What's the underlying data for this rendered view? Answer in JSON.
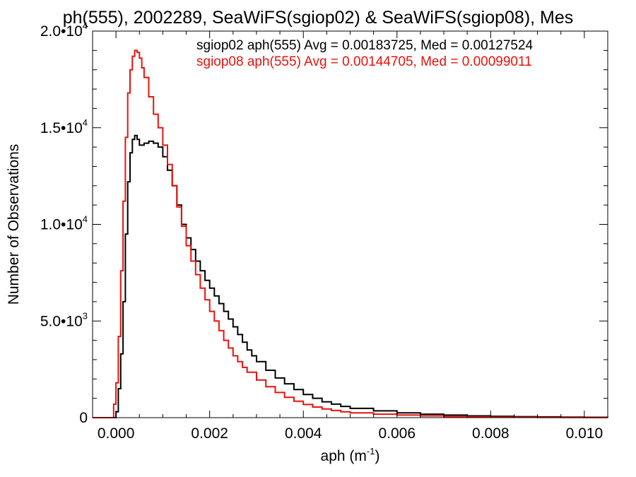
{
  "chart_data": {
    "type": "line",
    "drawstyle": "steps",
    "title": "ph(555), 2002289, SeaWiFS(sgiop02) & SeaWiFS(sgiop08), Mes",
    "xlabel_base": "aph (m",
    "xlabel_sup": "-1",
    "xlabel_close": ")",
    "ylabel": "Number of Observations",
    "xlim": [
      -0.0005,
      0.0105
    ],
    "ylim": [
      0,
      20000
    ],
    "xticks": [
      {
        "value": 0.0,
        "label": "0.000"
      },
      {
        "value": 0.002,
        "label": "0.002"
      },
      {
        "value": 0.004,
        "label": "0.004"
      },
      {
        "value": 0.006,
        "label": "0.006"
      },
      {
        "value": 0.008,
        "label": "0.008"
      },
      {
        "value": 0.01,
        "label": "0.010"
      }
    ],
    "yticks": [
      {
        "value": 0,
        "base": "0",
        "sup": ""
      },
      {
        "value": 5000,
        "base": "5.0•10",
        "sup": "3"
      },
      {
        "value": 10000,
        "base": "1.0•10",
        "sup": "4"
      },
      {
        "value": 15000,
        "base": "1.5•10",
        "sup": "4"
      },
      {
        "value": 20000,
        "base": "2.0•10",
        "sup": "4"
      }
    ],
    "grid": false,
    "annotations": [
      {
        "text": "sgiop02 aph(555) Avg = 0.00183725, Med = 0.00127524",
        "color": "#000000"
      },
      {
        "text": "sgiop08 aph(555) Avg = 0.00144705, Med = 0.00099011",
        "color": "#e8120c"
      }
    ],
    "series": [
      {
        "name": "sgiop02",
        "color": "#000000",
        "x": [
          -0.0005,
          -5e-05,
          0.0,
          5e-05,
          0.0001,
          0.00015,
          0.0002,
          0.00025,
          0.0003,
          0.00035,
          0.0004,
          0.00045,
          0.0005,
          0.0006,
          0.0007,
          0.0008,
          0.0009,
          0.001,
          0.0011,
          0.0012,
          0.0013,
          0.0014,
          0.0015,
          0.0016,
          0.0017,
          0.0018,
          0.0019,
          0.002,
          0.0021,
          0.0022,
          0.0023,
          0.0024,
          0.0025,
          0.0026,
          0.0027,
          0.0028,
          0.0029,
          0.003,
          0.0032,
          0.0034,
          0.0036,
          0.0038,
          0.004,
          0.0042,
          0.0044,
          0.0046,
          0.0048,
          0.005,
          0.0055,
          0.006,
          0.0065,
          0.007,
          0.0075,
          0.008,
          0.0085,
          0.009,
          0.0095,
          0.01,
          0.0105
        ],
        "y": [
          0,
          0,
          300,
          1500,
          3300,
          6000,
          9500,
          12200,
          13700,
          14400,
          14600,
          14400,
          14100,
          14200,
          14300,
          14200,
          14000,
          13500,
          12800,
          12000,
          11000,
          10000,
          9300,
          8700,
          8100,
          7600,
          7100,
          6700,
          6300,
          5900,
          5500,
          5100,
          4700,
          4300,
          3900,
          3500,
          3200,
          2900,
          2450,
          2050,
          1750,
          1450,
          1200,
          1000,
          820,
          700,
          580,
          480,
          350,
          250,
          180,
          130,
          90,
          70,
          50,
          40,
          30,
          20,
          15
        ]
      },
      {
        "name": "sgiop08",
        "color": "#e8120c",
        "x": [
          -0.0005,
          -0.0001,
          -5e-05,
          0.0,
          5e-05,
          0.0001,
          0.00015,
          0.0002,
          0.00025,
          0.0003,
          0.00035,
          0.0004,
          0.00045,
          0.0005,
          0.00055,
          0.0006,
          0.0007,
          0.0008,
          0.0009,
          0.001,
          0.0011,
          0.0012,
          0.0013,
          0.0014,
          0.0015,
          0.0016,
          0.0017,
          0.0018,
          0.0019,
          0.002,
          0.0021,
          0.0022,
          0.0023,
          0.0024,
          0.0025,
          0.0026,
          0.0027,
          0.0028,
          0.003,
          0.0032,
          0.0034,
          0.0036,
          0.0038,
          0.004,
          0.0042,
          0.0044,
          0.0046,
          0.0048,
          0.005,
          0.0055,
          0.006,
          0.0065,
          0.007,
          0.0075,
          0.008,
          0.0085,
          0.009,
          0.0095,
          0.01,
          0.0105
        ],
        "y": [
          0,
          0,
          700,
          1800,
          4200,
          7600,
          11200,
          14500,
          16800,
          18000,
          18700,
          19000,
          18900,
          18600,
          18100,
          17600,
          16600,
          15700,
          15000,
          14100,
          13100,
          12000,
          10900,
          9900,
          8900,
          8100,
          7400,
          6700,
          6100,
          5500,
          5000,
          4500,
          4000,
          3600,
          3200,
          2900,
          2600,
          2350,
          1950,
          1600,
          1300,
          1050,
          850,
          680,
          550,
          450,
          370,
          300,
          250,
          180,
          130,
          90,
          60,
          40,
          30,
          20,
          15,
          10,
          5,
          5
        ]
      }
    ]
  }
}
